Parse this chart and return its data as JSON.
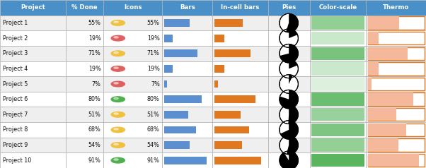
{
  "projects": [
    "Project 1",
    "Project 2",
    "Project 3",
    "Project 4",
    "Project 5",
    "Project 6",
    "Project 7",
    "Project 8",
    "Project 9",
    "Project 10"
  ],
  "pct_done": [
    55,
    19,
    71,
    19,
    7,
    80,
    51,
    68,
    54,
    91
  ],
  "icon_colors": [
    "#f0c040",
    "#e06060",
    "#f0c040",
    "#e06060",
    "#e06060",
    "#50b050",
    "#f0c040",
    "#f0c040",
    "#f0c040",
    "#50b050"
  ],
  "header_bg": "#4a90c8",
  "header_fg": "#ffffff",
  "row_bg_odd": "#efefef",
  "row_bg_even": "#ffffff",
  "bar_blue": "#5b8fcf",
  "bar_orange": "#e07820",
  "col_labels": [
    "Project",
    "% Done",
    "Icons",
    "Bars",
    "In-cell bars",
    "Pies",
    "Color-scale",
    "Thermo"
  ],
  "color_scale_low": "#e8f5e9",
  "color_scale_high": "#4caf50",
  "thermo_fill": "#f5b89a",
  "thermo_border": "#e07820",
  "grid_color": "#b0b0b0",
  "fig_width": 6.02,
  "fig_height": 2.38,
  "dpi": 100
}
